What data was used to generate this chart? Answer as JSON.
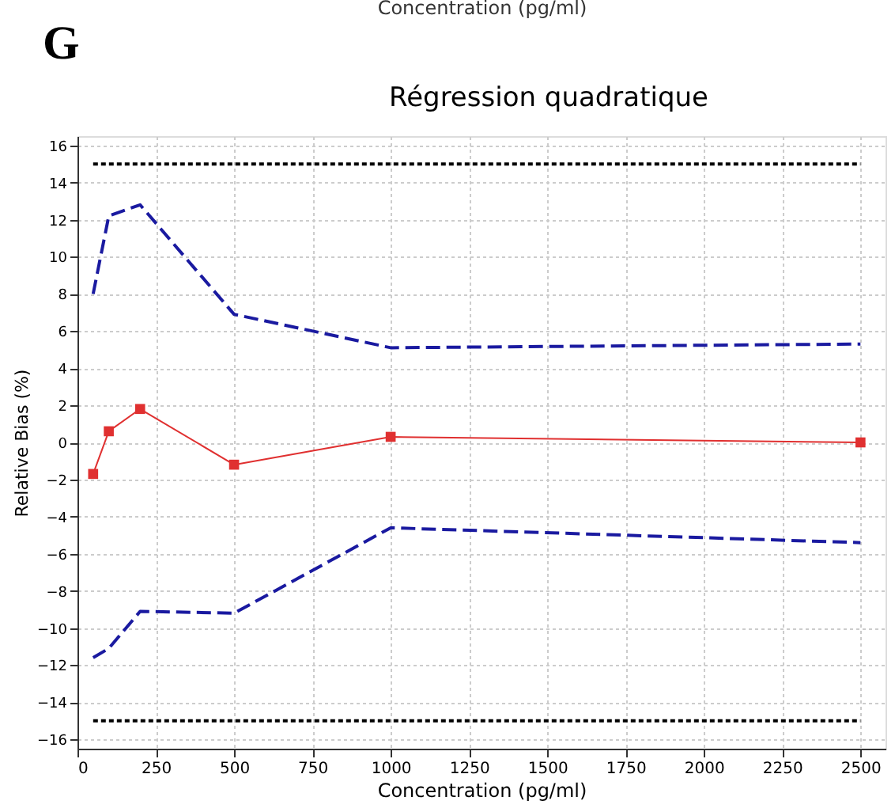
{
  "chart_data": {
    "type": "line",
    "title": "Régression quadratique",
    "xlabel": "Concentration (pg/ml)",
    "ylabel": "Relative Bias (%)",
    "annotations": [
      "G",
      "Concentration (pg/ml)"
    ],
    "x": [
      50,
      100,
      200,
      500,
      1000,
      2500
    ],
    "series": [
      {
        "color": "#000000",
        "values": [
          15,
          15,
          15,
          15,
          15,
          15
        ],
        "line_style": "dotted",
        "marker": "none"
      },
      {
        "color": "#1a1aa0",
        "values": [
          8.0,
          12.2,
          12.8,
          6.9,
          5.1,
          5.3
        ],
        "line_style": "dashed",
        "marker": "none"
      },
      {
        "color": "#e03030",
        "values": [
          -1.7,
          0.6,
          1.8,
          -1.2,
          0.3,
          0.0
        ],
        "line_style": "solid",
        "marker": "square"
      },
      {
        "color": "#1a1aa0",
        "values": [
          -11.6,
          -11.1,
          -9.1,
          -9.2,
          -4.6,
          -5.4
        ],
        "line_style": "dashed",
        "marker": "none"
      },
      {
        "color": "#000000",
        "values": [
          -15,
          -15,
          -15,
          -15,
          -15,
          -15
        ],
        "line_style": "dotted",
        "marker": "none"
      }
    ],
    "xlim": [
      0,
      2580
    ],
    "ylim": [
      -16.5,
      16.5
    ],
    "xticks": [
      0,
      250,
      500,
      750,
      1000,
      1250,
      1500,
      1750,
      2000,
      2250,
      2500
    ],
    "yticks": [
      -16,
      -14,
      -12,
      -10,
      -8,
      -6,
      -4,
      -2,
      0,
      2,
      4,
      6,
      8,
      10,
      12,
      14,
      16
    ],
    "grid": true
  }
}
